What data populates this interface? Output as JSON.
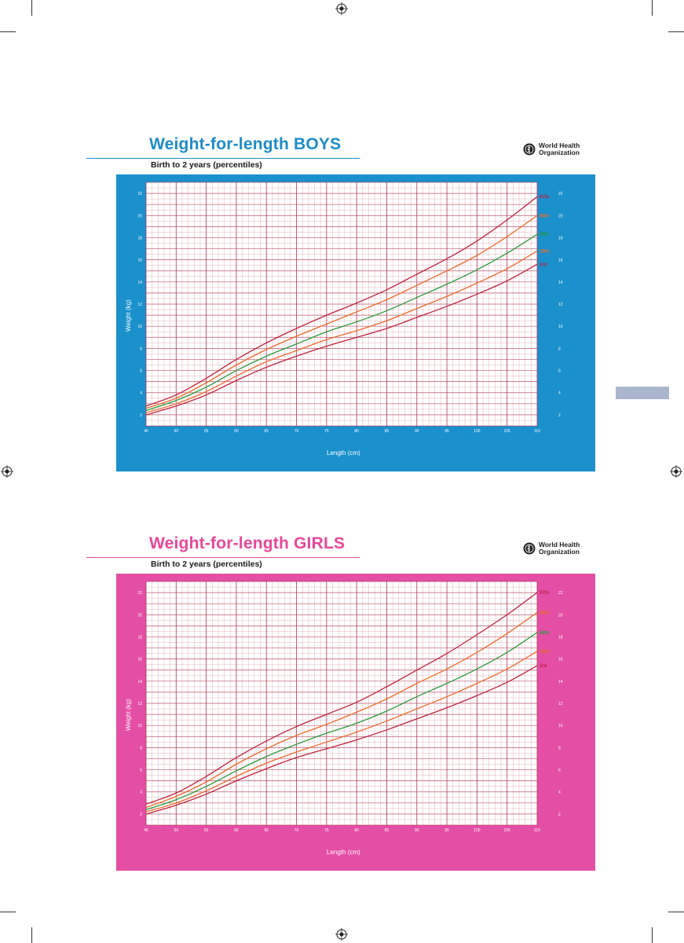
{
  "page": {
    "side_tab_color": "#a9b6cd"
  },
  "charts": [
    {
      "id": "boys",
      "title": "Weight-for-length BOYS",
      "subtitle": "Birth to 2 years (percentiles)",
      "org": "World Health Organization",
      "accent": "#1c8cc7",
      "frame": "#1a90cc"
    },
    {
      "id": "girls",
      "title": "Weight-for-length GIRLS",
      "subtitle": "Birth to 2 years (percentiles)",
      "org": "World Health Organization",
      "accent": "#e8479a",
      "frame": "#e44ea5"
    }
  ],
  "colors": {
    "grid": "#b03a55",
    "plot_bg": "#ffffff",
    "p97": "#c0223e",
    "p85": "#ee6a2a",
    "p50": "#2a9a3c",
    "p15": "#ee6a2a",
    "p3": "#c0223e"
  },
  "chart_data": [
    {
      "type": "line",
      "title": "Weight-for-length BOYS",
      "subtitle": "Birth to 2 years (percentiles)",
      "xlabel": "Length (cm)",
      "ylabel": "Weight (kg)",
      "xlim": [
        45,
        110
      ],
      "ylim": [
        1,
        23
      ],
      "x_ticks": [
        45,
        50,
        55,
        60,
        65,
        70,
        75,
        80,
        85,
        90,
        95,
        100,
        105,
        110
      ],
      "y_ticks": [
        2,
        4,
        6,
        8,
        10,
        12,
        14,
        16,
        18,
        20,
        22
      ],
      "grid": true,
      "x": [
        45,
        50,
        55,
        60,
        65,
        70,
        75,
        80,
        85,
        90,
        95,
        100,
        105,
        110
      ],
      "series": [
        {
          "name": "97th",
          "color_key": "p97",
          "values": [
            2.8,
            3.8,
            5.3,
            7.0,
            8.5,
            9.8,
            11.0,
            12.1,
            13.3,
            14.7,
            16.1,
            17.7,
            19.6,
            21.7
          ]
        },
        {
          "name": "85th",
          "color_key": "p85",
          "values": [
            2.6,
            3.5,
            4.9,
            6.5,
            7.9,
            9.1,
            10.2,
            11.3,
            12.4,
            13.7,
            15.0,
            16.4,
            18.1,
            20.0
          ]
        },
        {
          "name": "50th",
          "color_key": "p50",
          "values": [
            2.4,
            3.3,
            4.5,
            6.0,
            7.3,
            8.4,
            9.5,
            10.4,
            11.4,
            12.6,
            13.8,
            15.1,
            16.6,
            18.3
          ]
        },
        {
          "name": "15th",
          "color_key": "p15",
          "values": [
            2.2,
            3.0,
            4.1,
            5.5,
            6.8,
            7.8,
            8.8,
            9.6,
            10.5,
            11.6,
            12.7,
            13.9,
            15.2,
            16.8
          ]
        },
        {
          "name": "3rd",
          "color_key": "p3",
          "values": [
            2.0,
            2.8,
            3.8,
            5.1,
            6.3,
            7.3,
            8.2,
            9.0,
            9.8,
            10.8,
            11.8,
            12.9,
            14.1,
            15.6
          ]
        }
      ]
    },
    {
      "type": "line",
      "title": "Weight-for-length GIRLS",
      "subtitle": "Birth to 2 years (percentiles)",
      "xlabel": "Length (cm)",
      "ylabel": "Weight (kg)",
      "xlim": [
        45,
        110
      ],
      "ylim": [
        1,
        23
      ],
      "x_ticks": [
        45,
        50,
        55,
        60,
        65,
        70,
        75,
        80,
        85,
        90,
        95,
        100,
        105,
        110
      ],
      "y_ticks": [
        2,
        4,
        6,
        8,
        10,
        12,
        14,
        16,
        18,
        20,
        22
      ],
      "grid": true,
      "x": [
        45,
        50,
        55,
        60,
        65,
        70,
        75,
        80,
        85,
        90,
        95,
        100,
        105,
        110
      ],
      "series": [
        {
          "name": "97th",
          "color_key": "p97",
          "values": [
            2.9,
            3.9,
            5.4,
            7.1,
            8.6,
            9.9,
            11.0,
            12.1,
            13.5,
            15.0,
            16.5,
            18.2,
            20.0,
            22.0
          ]
        },
        {
          "name": "85th",
          "color_key": "p85",
          "values": [
            2.6,
            3.6,
            4.9,
            6.5,
            7.9,
            9.1,
            10.1,
            11.2,
            12.4,
            13.8,
            15.1,
            16.6,
            18.3,
            20.2
          ]
        },
        {
          "name": "50th",
          "color_key": "p50",
          "values": [
            2.4,
            3.3,
            4.5,
            5.9,
            7.2,
            8.3,
            9.3,
            10.2,
            11.3,
            12.6,
            13.8,
            15.1,
            16.6,
            18.4
          ]
        },
        {
          "name": "15th",
          "color_key": "p15",
          "values": [
            2.2,
            3.0,
            4.1,
            5.4,
            6.6,
            7.6,
            8.5,
            9.4,
            10.4,
            11.5,
            12.6,
            13.8,
            15.1,
            16.7
          ]
        },
        {
          "name": "3rd",
          "color_key": "p3",
          "values": [
            2.0,
            2.8,
            3.8,
            5.0,
            6.1,
            7.1,
            7.9,
            8.7,
            9.6,
            10.6,
            11.6,
            12.7,
            13.9,
            15.4
          ]
        }
      ]
    }
  ]
}
